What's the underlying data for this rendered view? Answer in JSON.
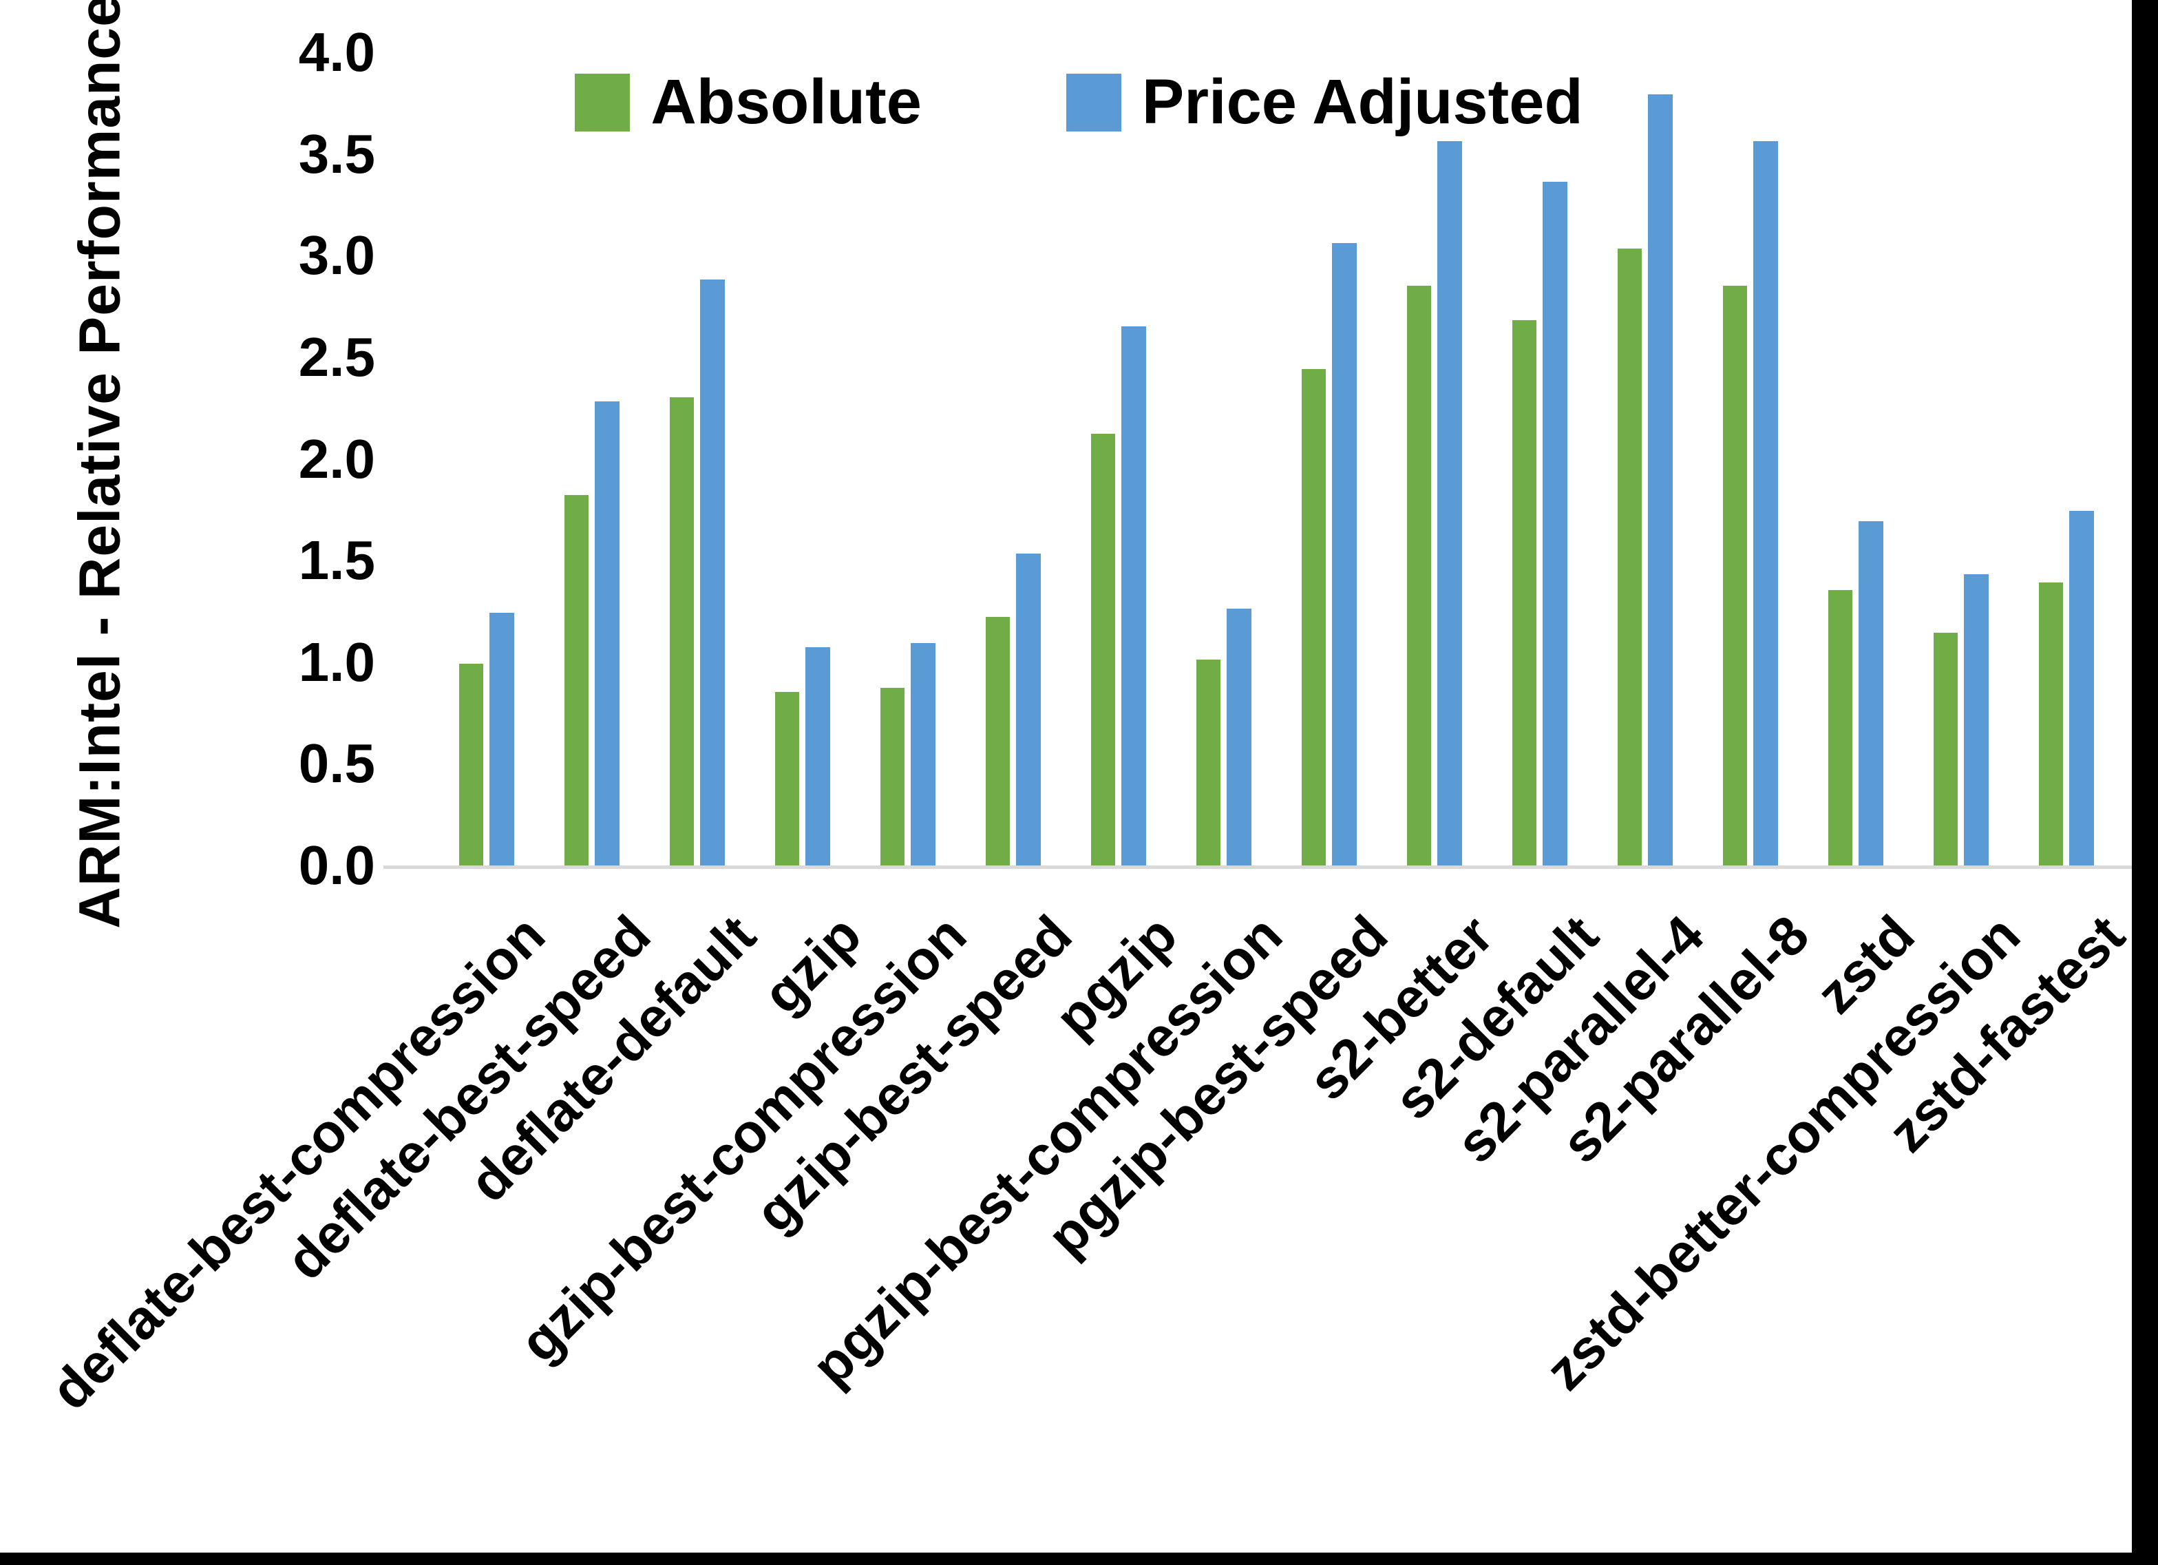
{
  "y_axis": {
    "title": "ARM:Intel - Relative Performance"
  },
  "legend": [
    {
      "label": "Absolute",
      "color": "#70AD47"
    },
    {
      "label": "Price Adjusted",
      "color": "#5B9BD5"
    }
  ],
  "colors": {
    "absolute": "#70AD47",
    "price_adjusted": "#5B9BD5",
    "axis_line": "#D9D9D9",
    "border": "#000000"
  },
  "chart_data": {
    "type": "bar",
    "title": "",
    "xlabel": "",
    "ylabel": "ARM:Intel - Relative Performance",
    "ylim": [
      0.0,
      4.0
    ],
    "y_ticks": [
      "0.0",
      "0.5",
      "1.0",
      "1.5",
      "2.0",
      "2.5",
      "3.0",
      "3.5",
      "4.0"
    ],
    "grid": false,
    "legend_position": "top-center",
    "categories": [
      "deflate-best-compression",
      "deflate-best-speed",
      "deflate-default",
      "gzip",
      "gzip-best-compression",
      "gzip-best-speed",
      "pgzip",
      "pgzip-best-compression",
      "pgzip-best-speed",
      "s2-better",
      "s2-default",
      "s2-parallel-4",
      "s2-parallel-8",
      "zstd",
      "zstd-better-compression",
      "zstd-fastest"
    ],
    "series": [
      {
        "name": "Absolute",
        "color": "#70AD47",
        "values": [
          1.0,
          1.83,
          2.31,
          0.86,
          0.88,
          1.23,
          2.13,
          1.02,
          2.45,
          2.86,
          2.69,
          3.04,
          2.86,
          1.36,
          1.15,
          1.4
        ]
      },
      {
        "name": "Price Adjusted",
        "color": "#5B9BD5",
        "values": [
          1.25,
          2.29,
          2.89,
          1.08,
          1.1,
          1.54,
          2.66,
          1.27,
          3.07,
          3.57,
          3.37,
          3.8,
          3.57,
          1.7,
          1.44,
          1.75
        ]
      }
    ]
  }
}
